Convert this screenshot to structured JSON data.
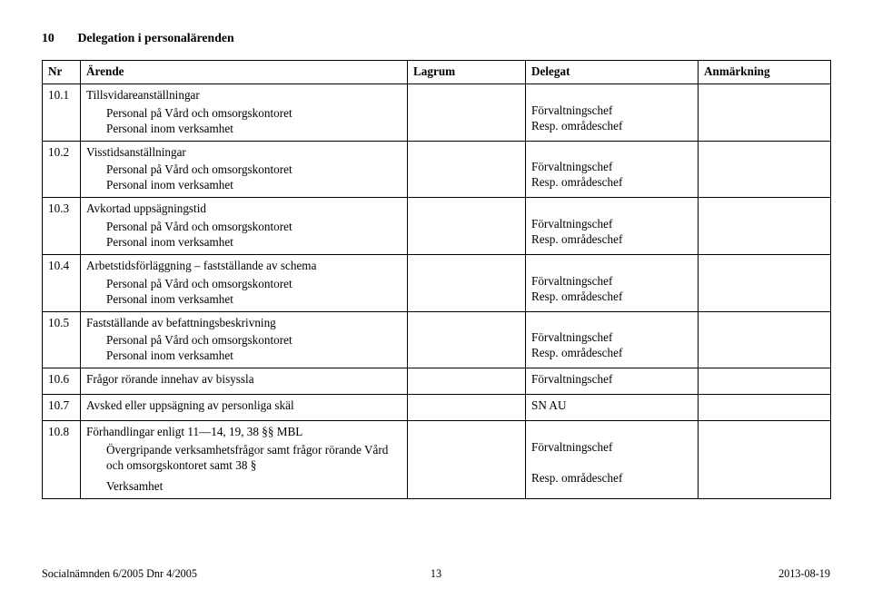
{
  "heading": {
    "number": "10",
    "title": "Delegation i personalärenden"
  },
  "columns": {
    "nr": "Nr",
    "arende": "Ärende",
    "lagrum": "Lagrum",
    "delegat": "Delegat",
    "anmarkning": "Anmärkning"
  },
  "rows": [
    {
      "nr": "10.1",
      "arende_title": "Tillsvidareanställningar",
      "arende_lines": [
        "Personal på Vård och omsorgskontoret",
        "Personal inom verksamhet"
      ],
      "lagrum": "",
      "delegat_lines": [
        "",
        "Förvaltningschef",
        "Resp. områdeschef"
      ],
      "anm": ""
    },
    {
      "nr": "10.2",
      "arende_title": "Visstidsanställningar",
      "arende_lines": [
        "Personal på Vård och omsorgskontoret",
        "Personal inom verksamhet"
      ],
      "lagrum": "",
      "delegat_lines": [
        "",
        "Förvaltningschef",
        "Resp. områdeschef"
      ],
      "anm": ""
    },
    {
      "nr": "10.3",
      "arende_title": "Avkortad uppsägningstid",
      "arende_lines": [
        "Personal på Vård och omsorgskontoret",
        "Personal inom verksamhet"
      ],
      "lagrum": "",
      "delegat_lines": [
        "",
        "Förvaltningschef",
        "Resp. områdeschef"
      ],
      "anm": ""
    },
    {
      "nr": "10.4",
      "arende_title": "Arbetstidsförläggning – fastställande av schema",
      "arende_lines": [
        "Personal på Vård och omsorgskontoret",
        "Personal inom verksamhet"
      ],
      "lagrum": "",
      "delegat_lines": [
        "",
        "Förvaltningschef",
        "Resp. områdeschef"
      ],
      "anm": ""
    },
    {
      "nr": "10.5",
      "arende_title": "Fastställande av befattningsbeskrivning",
      "arende_lines": [
        "Personal på Vård och omsorgskontoret",
        "Personal inom verksamhet"
      ],
      "lagrum": "",
      "delegat_lines": [
        "",
        "Förvaltningschef",
        "Resp. områdeschef"
      ],
      "anm": ""
    },
    {
      "nr": "10.6",
      "arende_title": "Frågor rörande innehav av bisyssla",
      "arende_lines": [],
      "lagrum": "",
      "delegat_lines": [
        "Förvaltningschef"
      ],
      "anm": ""
    },
    {
      "nr": "10.7",
      "arende_title": "Avsked eller uppsägning av personliga skäl",
      "arende_lines": [],
      "lagrum": "",
      "delegat_lines": [
        "SN AU"
      ],
      "anm": ""
    },
    {
      "nr": "10.8",
      "arende_title": "Förhandlingar enligt 11—14, 19, 38 §§ MBL",
      "arende_lines": [
        "Övergripande verksamhetsfrågor samt frågor rörande Vård och omsorgskontoret samt 38 §",
        "Verksamhet"
      ],
      "lagrum": "",
      "delegat_lines": [
        "",
        "Förvaltningschef",
        "",
        "Resp. områdeschef"
      ],
      "anm": "",
      "special_spacing": true
    }
  ],
  "footer": {
    "left": "Socialnämnden 6/2005     Dnr 4/2005",
    "page": "13",
    "right": "2013-08-19"
  }
}
